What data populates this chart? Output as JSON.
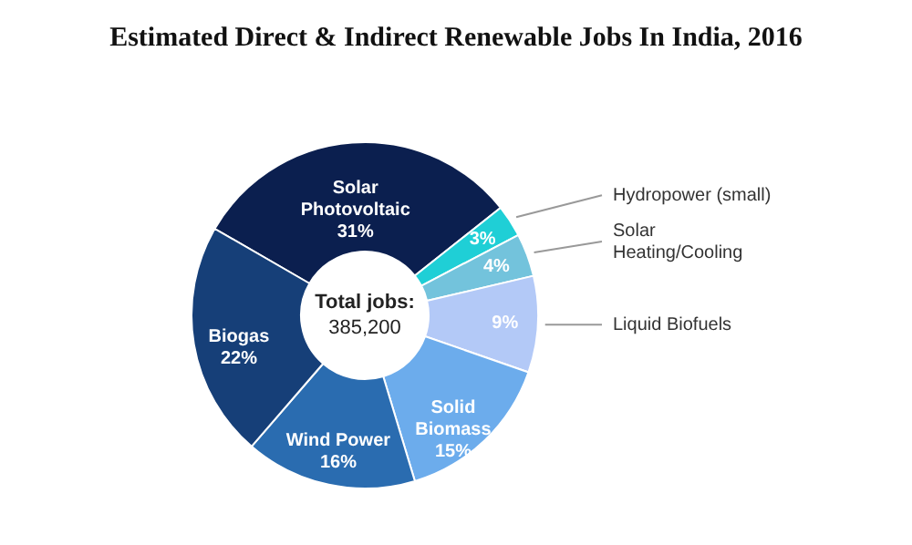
{
  "chart_data": {
    "type": "donut",
    "title": "Estimated Direct & Indirect Renewable Jobs In India, 2016",
    "categories": [
      "Solar Photovoltaic",
      "Hydropower (small)",
      "Solar Heating/Cooling",
      "Liquid Biofuels",
      "Solid Biomass",
      "Wind Power",
      "Biogas"
    ],
    "values": [
      31,
      3,
      4,
      9,
      15,
      16,
      22
    ],
    "colors": [
      "#0b1f4f",
      "#1fcfd6",
      "#73c3dc",
      "#b3c9f7",
      "#6cacec",
      "#2a6cb0",
      "#163f78"
    ],
    "value_labels": [
      "31%",
      "3%",
      "4%",
      "9%",
      "15%",
      "16%",
      "22%"
    ],
    "annotations": [
      "Total jobs:",
      "385,200"
    ],
    "legend": false
  }
}
